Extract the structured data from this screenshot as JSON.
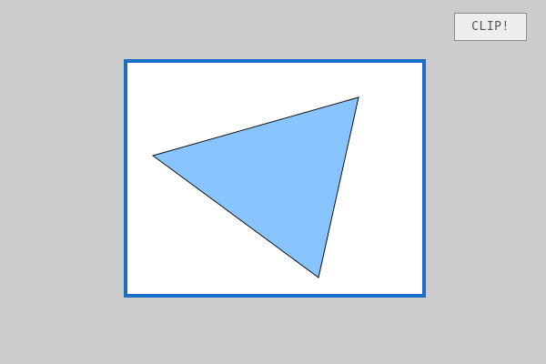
{
  "toolbar": {
    "clip_label": "CLIP!"
  },
  "canvas": {
    "background": "#ffffff",
    "border_color": "#1a6fc4",
    "shape": {
      "type": "triangle",
      "fill": "#88c4ff",
      "stroke": "#111111"
    }
  },
  "colors": {
    "page_background": "#cccccc"
  }
}
